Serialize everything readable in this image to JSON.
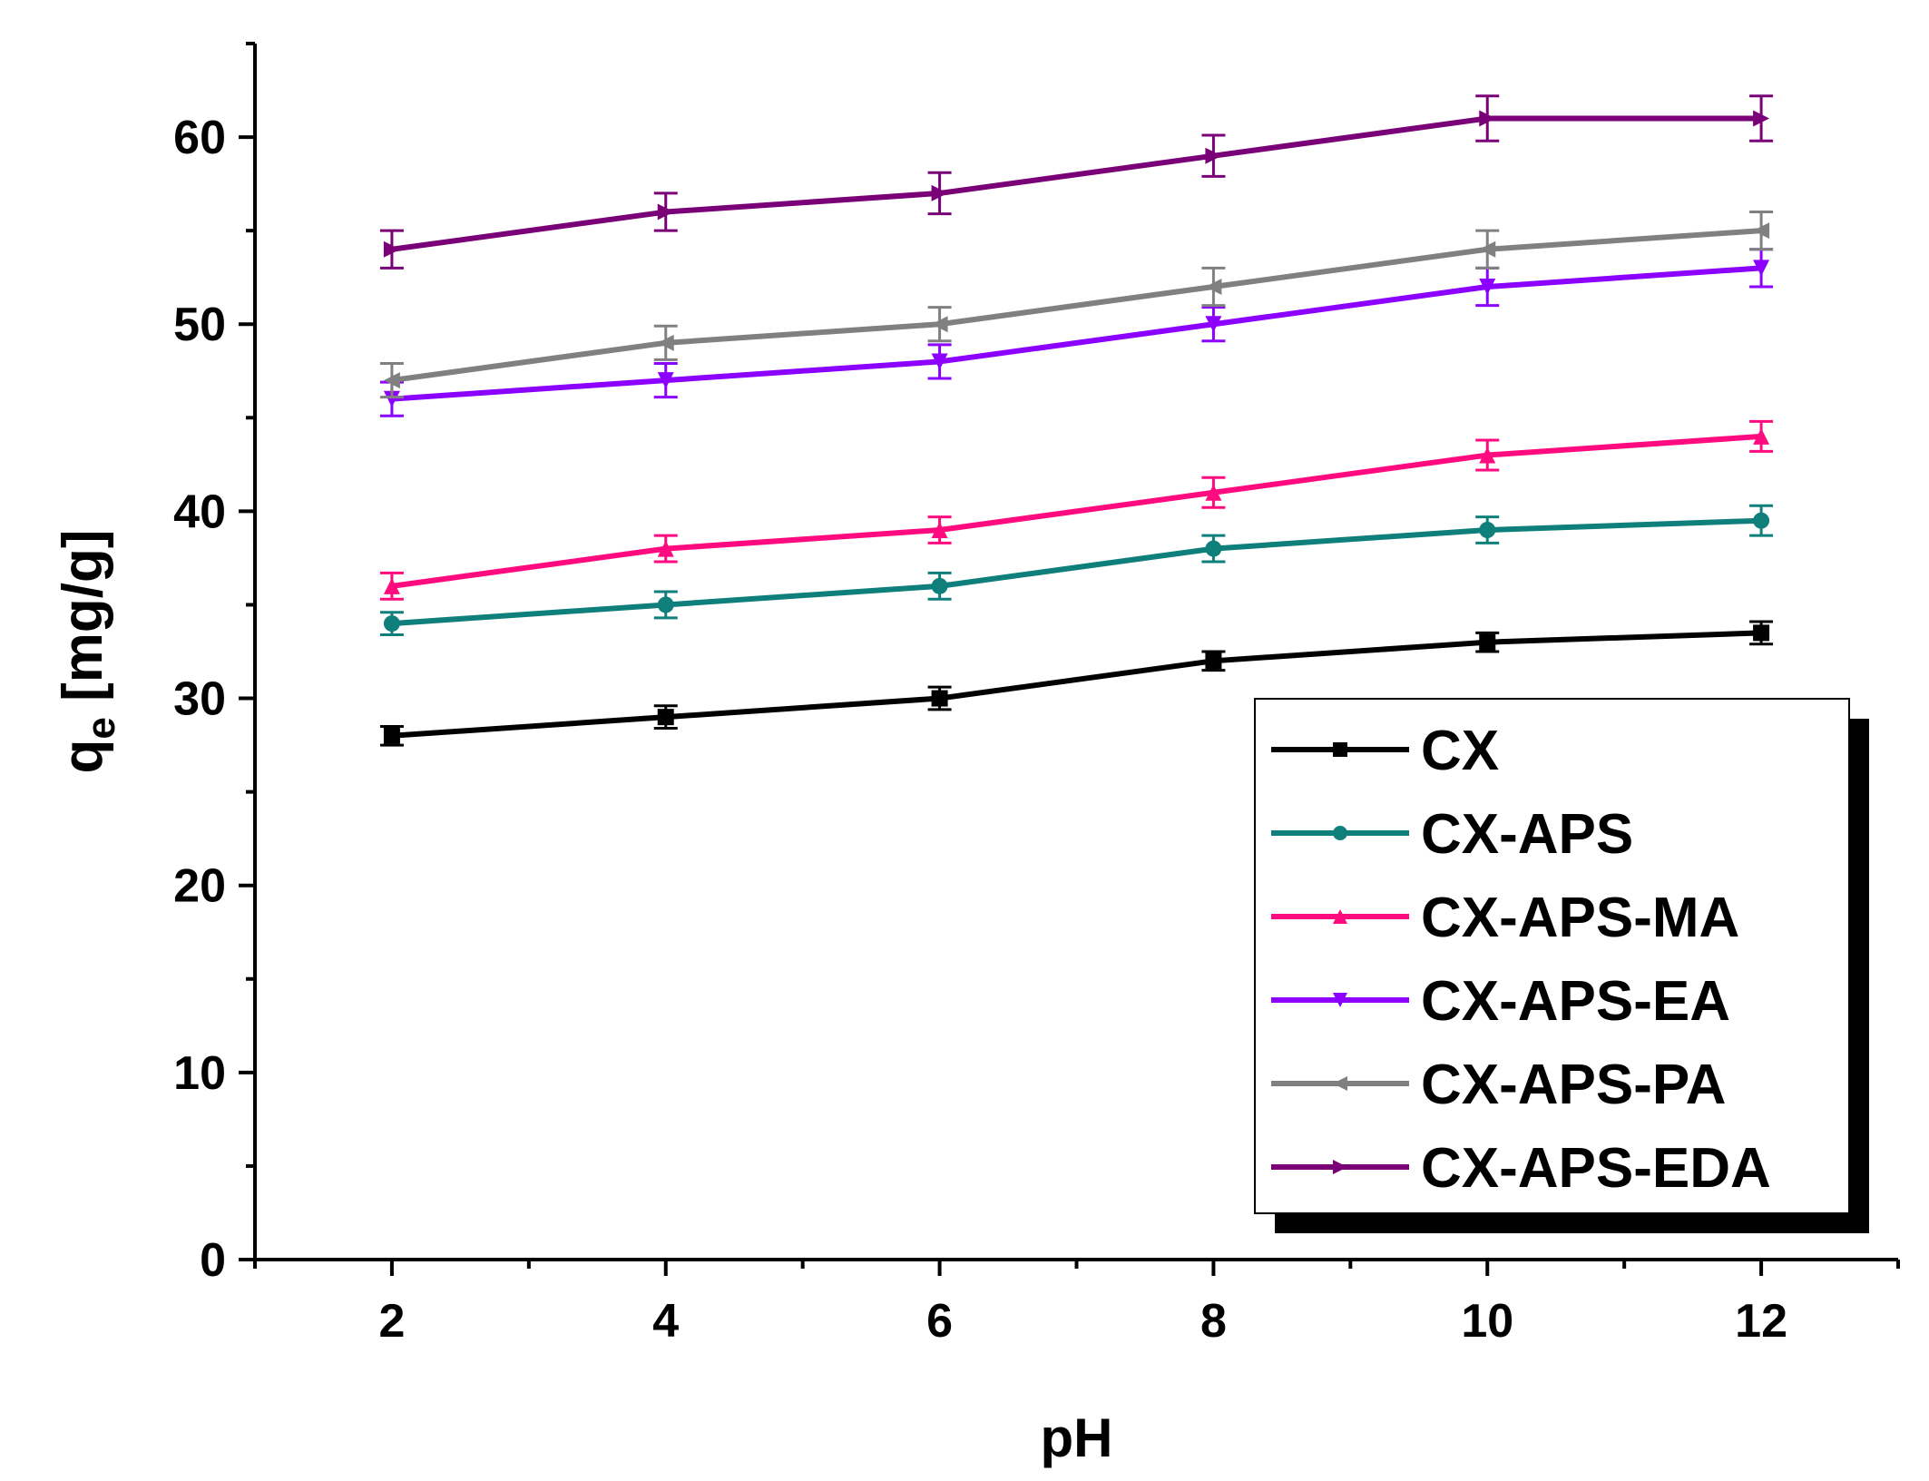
{
  "chart_data": {
    "type": "line",
    "title": "",
    "xlabel": "pH",
    "ylabel_main": "q",
    "ylabel_sub": "e",
    "ylabel_unit": "[mg/g]",
    "xlim": [
      1,
      13
    ],
    "ylim": [
      0,
      65
    ],
    "x_ticks": [
      2,
      4,
      6,
      8,
      10,
      12
    ],
    "y_ticks": [
      0,
      10,
      20,
      30,
      40,
      50,
      60
    ],
    "x": [
      2,
      4,
      6,
      8,
      10,
      12
    ],
    "series": [
      {
        "name": "CX",
        "color": "#000000",
        "marker": "square",
        "values": [
          28,
          29,
          30,
          32,
          33,
          33.5
        ],
        "errors": [
          0.5,
          0.6,
          0.6,
          0.5,
          0.5,
          0.6
        ]
      },
      {
        "name": "CX-APS",
        "color": "#0f7f7b",
        "marker": "circle",
        "values": [
          34,
          35,
          36,
          38,
          39,
          39.5
        ],
        "errors": [
          0.6,
          0.7,
          0.7,
          0.7,
          0.7,
          0.8
        ]
      },
      {
        "name": "CX-APS-MA",
        "color": "#ff0a7f",
        "marker": "triangle-up",
        "values": [
          36,
          38,
          39,
          41,
          43,
          44
        ],
        "errors": [
          0.7,
          0.7,
          0.7,
          0.8,
          0.8,
          0.8
        ]
      },
      {
        "name": "CX-APS-EA",
        "color": "#8b00ff",
        "marker": "triangle-down",
        "values": [
          46,
          47,
          48,
          50,
          52,
          53
        ],
        "errors": [
          0.9,
          0.9,
          0.9,
          0.9,
          1.0,
          1.0
        ]
      },
      {
        "name": "CX-APS-PA",
        "color": "#808080",
        "marker": "triangle-left",
        "values": [
          47,
          49,
          50,
          52,
          54,
          55
        ],
        "errors": [
          0.9,
          0.9,
          0.9,
          1.0,
          1.0,
          1.0
        ]
      },
      {
        "name": "CX-APS-EDA",
        "color": "#7a0078",
        "marker": "triangle-right",
        "values": [
          54,
          56,
          57,
          59,
          61,
          61
        ],
        "errors": [
          1.0,
          1.0,
          1.1,
          1.1,
          1.2,
          1.2
        ]
      }
    ],
    "legend_position": "bottom-right",
    "grid": false
  }
}
